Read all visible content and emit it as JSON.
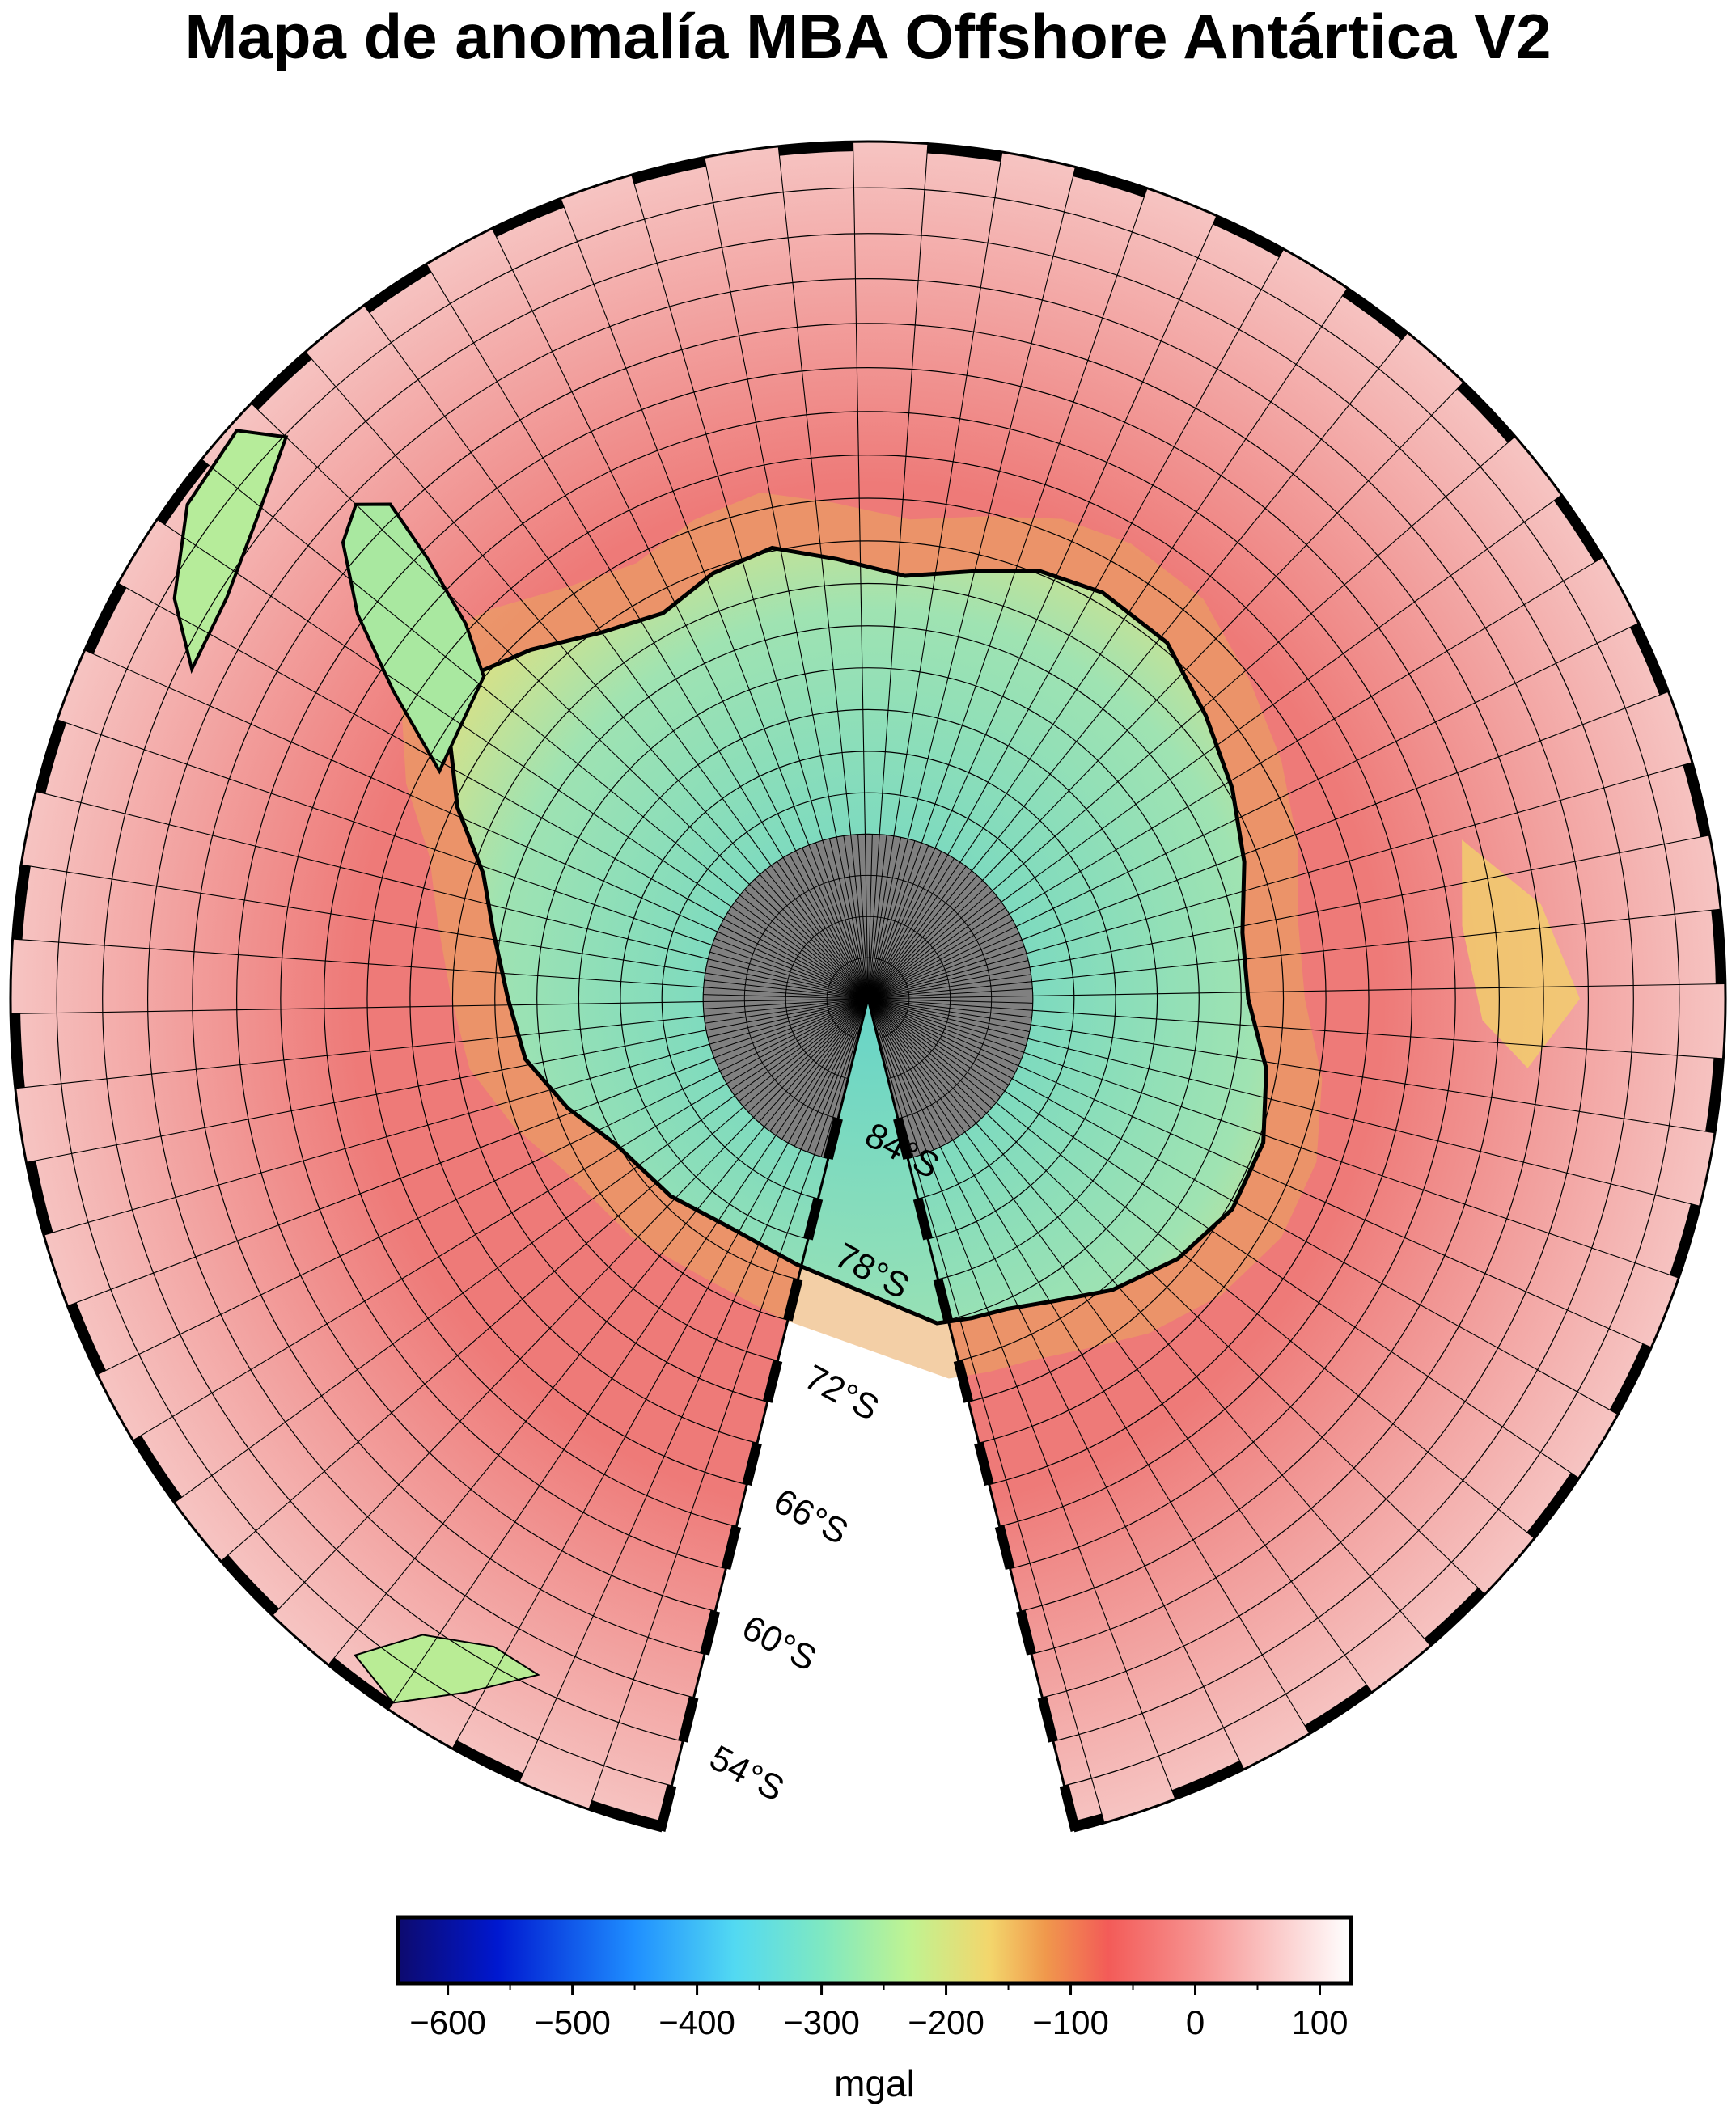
{
  "title": "Mapa de anomalía MBA Offshore Antártica V2",
  "map": {
    "projection": "polar-stereographic-south",
    "wedge_gap_degrees": 28,
    "graticule_lat_step_deg": 2,
    "graticule_lon_step_deg": 5,
    "latitude_labels": [
      "54°S",
      "60°S",
      "66°S",
      "72°S",
      "78°S",
      "84°S"
    ],
    "latitude_label_values": [
      -54,
      -60,
      -66,
      -72,
      -78,
      -84
    ],
    "no_data_cap_lat": -82,
    "colors": {
      "ocean_base": "#ee7a78",
      "ocean_light": "#f6c4c2",
      "continent": "#9fe3b2",
      "continent_dark": "#66d4c8",
      "shelf": "#e9e07a",
      "no_data": "#808080",
      "coast": "#000000"
    }
  },
  "colorbar": {
    "unit": "mgal",
    "min": -640,
    "max": 125,
    "ticks": [
      -600,
      -500,
      -400,
      -300,
      -200,
      -100,
      0,
      100
    ],
    "tick_labels": [
      "−600",
      "−500",
      "−400",
      "−300",
      "−200",
      "−100",
      "0",
      "100"
    ],
    "gradient_stops": [
      {
        "value": -640,
        "color": "#0d0a6e"
      },
      {
        "value": -560,
        "color": "#0018d0"
      },
      {
        "value": -450,
        "color": "#1f8fff"
      },
      {
        "value": -370,
        "color": "#52d9f2"
      },
      {
        "value": -300,
        "color": "#7ee8c2"
      },
      {
        "value": -230,
        "color": "#bff392"
      },
      {
        "value": -165,
        "color": "#f3d66c"
      },
      {
        "value": -120,
        "color": "#f0984c"
      },
      {
        "value": -70,
        "color": "#f35b58"
      },
      {
        "value": 0,
        "color": "#f6908e"
      },
      {
        "value": 125,
        "color": "#ffffff"
      }
    ]
  }
}
